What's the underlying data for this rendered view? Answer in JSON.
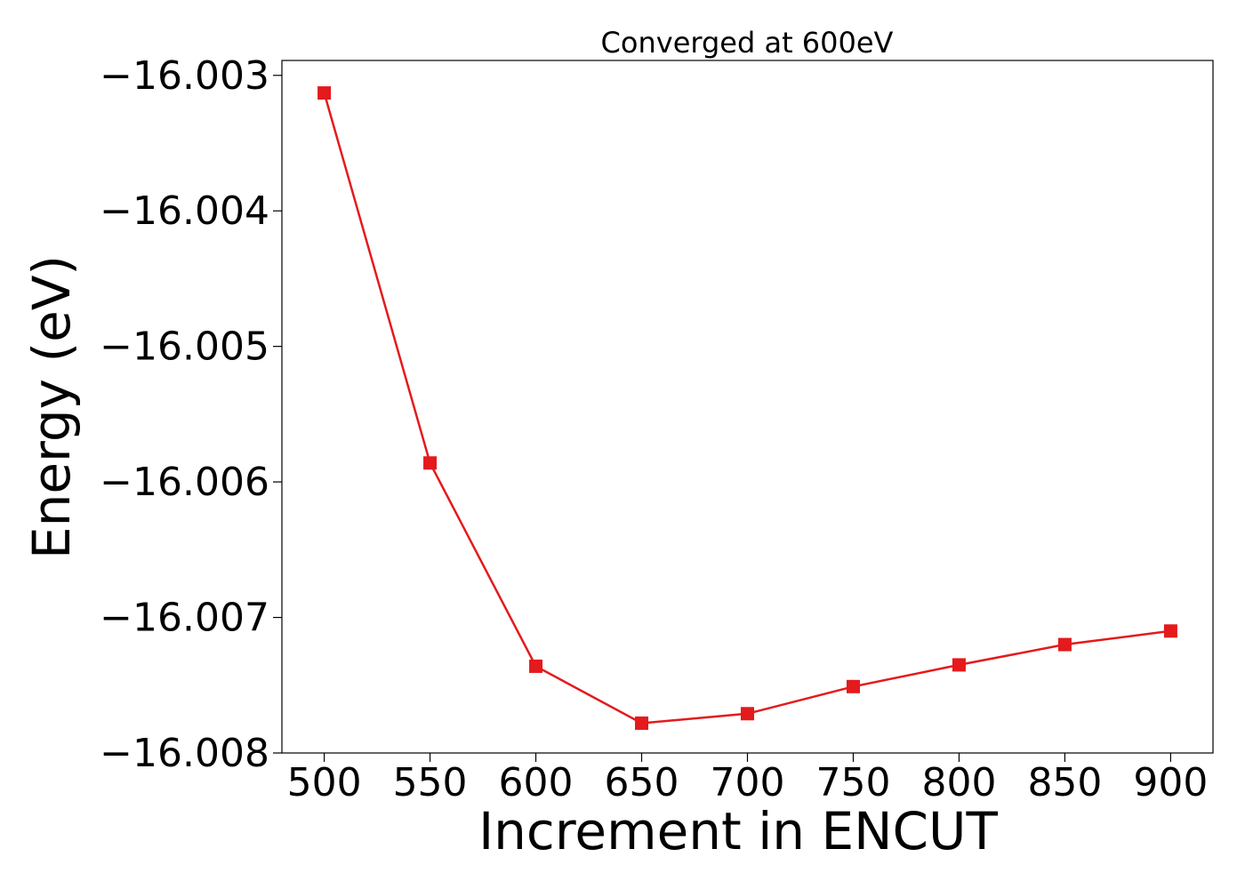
{
  "chart_data": {
    "type": "line",
    "title": "Converged at 600eV",
    "xlabel": "Increment in ENCUT",
    "ylabel": "Energy (eV)",
    "x": [
      500,
      550,
      600,
      650,
      700,
      750,
      800,
      850,
      900
    ],
    "series": [
      {
        "values": [
          -16.00313,
          -16.00586,
          -16.00736,
          -16.00778,
          -16.00771,
          -16.00751,
          -16.00735,
          -16.0072,
          -16.0071
        ],
        "color": "#e41a1c",
        "marker": "square"
      }
    ],
    "xticks": [
      500,
      550,
      600,
      650,
      700,
      750,
      800,
      850,
      900
    ],
    "xtick_labels": [
      "500",
      "550",
      "600",
      "650",
      "700",
      "750",
      "800",
      "850",
      "900"
    ],
    "yticks": [
      -16.003,
      -16.004,
      -16.005,
      -16.006,
      -16.007,
      -16.008
    ],
    "ytick_labels": [
      "−16.003",
      "−16.004",
      "−16.005",
      "−16.006",
      "−16.007",
      "−16.008"
    ],
    "xlim": [
      480,
      920
    ],
    "ylim": [
      -16.008,
      -16.00289
    ],
    "grid": false,
    "legend": "none"
  }
}
